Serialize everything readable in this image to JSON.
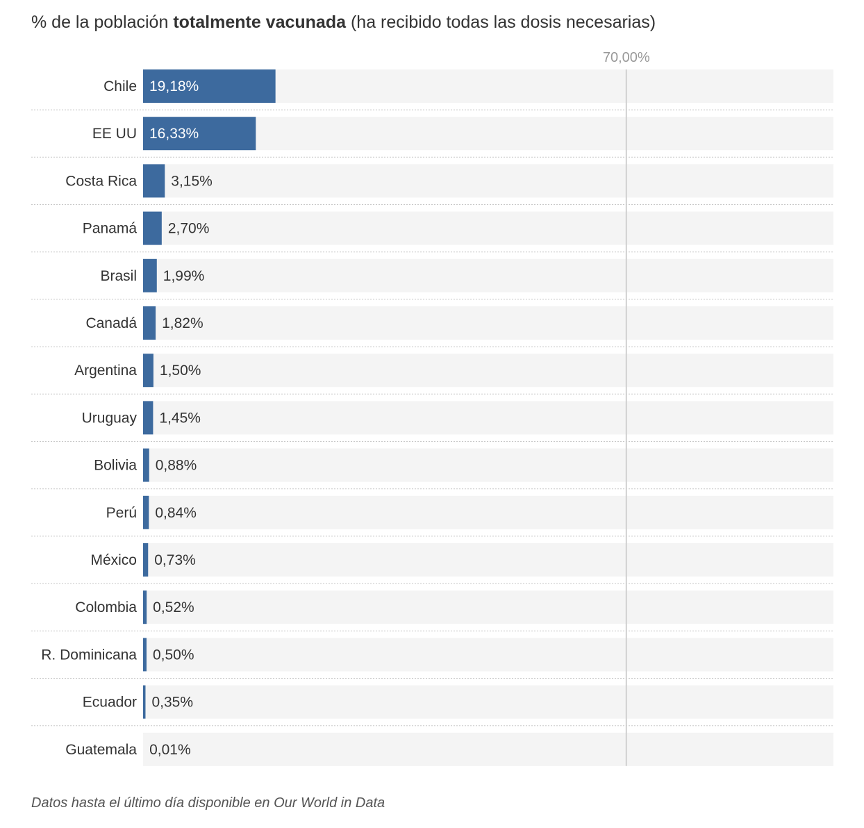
{
  "title": {
    "prefix": "% de la población",
    "bold": "totalmente vacunada",
    "suffix": "(ha recibido todas las dosis necesarias)"
  },
  "footnote": "Datos hasta el último día disponible en Our World in Data",
  "colors": {
    "bar": "#3d6a9e",
    "track": "#f4f4f4",
    "reference_line": "#d0d0d0",
    "text": "#333333",
    "reference_label": "#999999",
    "inside_label": "#ffffff"
  },
  "chart_data": {
    "type": "bar",
    "orientation": "horizontal",
    "categories": [
      "Chile",
      "EE UU",
      "Costa Rica",
      "Panamá",
      "Brasil",
      "Canadá",
      "Argentina",
      "Uruguay",
      "Bolivia",
      "Perú",
      "México",
      "Colombia",
      "R. Dominicana",
      "Ecuador",
      "Guatemala"
    ],
    "values": [
      19.18,
      16.33,
      3.15,
      2.7,
      1.99,
      1.82,
      1.5,
      1.45,
      0.88,
      0.84,
      0.73,
      0.52,
      0.5,
      0.35,
      0.01
    ],
    "value_labels": [
      "19,18%",
      "16,33%",
      "3,15%",
      "2,70%",
      "1,99%",
      "1,82%",
      "1,50%",
      "1,45%",
      "0,88%",
      "0,84%",
      "0,73%",
      "0,52%",
      "0,50%",
      "0,35%",
      "0,01%"
    ],
    "xlim": [
      0,
      100
    ],
    "reference_line": {
      "value": 70,
      "label": "70,00%"
    },
    "grid": false,
    "legend": "none"
  }
}
